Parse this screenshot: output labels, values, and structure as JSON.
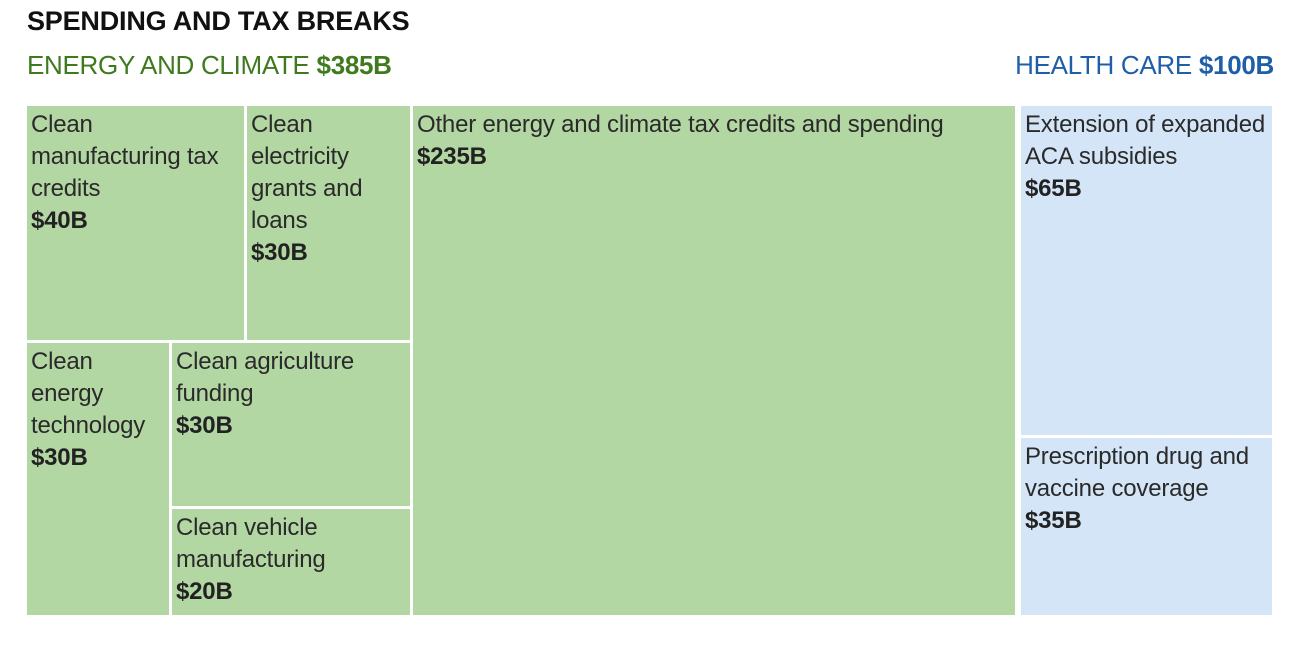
{
  "title": "SPENDING AND TAX BREAKS",
  "colors": {
    "energy_text": "#3f7a1f",
    "energy_fill": "#b3d7a3",
    "health_text": "#1f5fa8",
    "health_fill": "#d4e5f7"
  },
  "chart_data": {
    "type": "treemap",
    "title": "SPENDING AND TAX BREAKS",
    "groups": [
      {
        "name": "ENERGY AND CLIMATE",
        "total_label": "$385B",
        "total": 385,
        "items": [
          {
            "label": "Clean manufacturing tax credits",
            "value_label": "$40B",
            "value": 40
          },
          {
            "label": "Clean electricity grants and loans",
            "value_label": "$30B",
            "value": 30
          },
          {
            "label": "Other energy and climate tax credits and spending",
            "value_label": "$235B",
            "value": 235
          },
          {
            "label": "Clean energy technology",
            "value_label": "$30B",
            "value": 30
          },
          {
            "label": "Clean agriculture funding",
            "value_label": "$30B",
            "value": 30
          },
          {
            "label": "Clean vehicle manufacturing",
            "value_label": "$20B",
            "value": 20
          }
        ]
      },
      {
        "name": "HEALTH CARE",
        "total_label": "$100B",
        "total": 100,
        "items": [
          {
            "label": "Extension of expanded ACA subsidies",
            "value_label": "$65B",
            "value": 65
          },
          {
            "label": "Prescription drug and vaccine coverage",
            "value_label": "$35B",
            "value": 35
          }
        ]
      }
    ]
  }
}
